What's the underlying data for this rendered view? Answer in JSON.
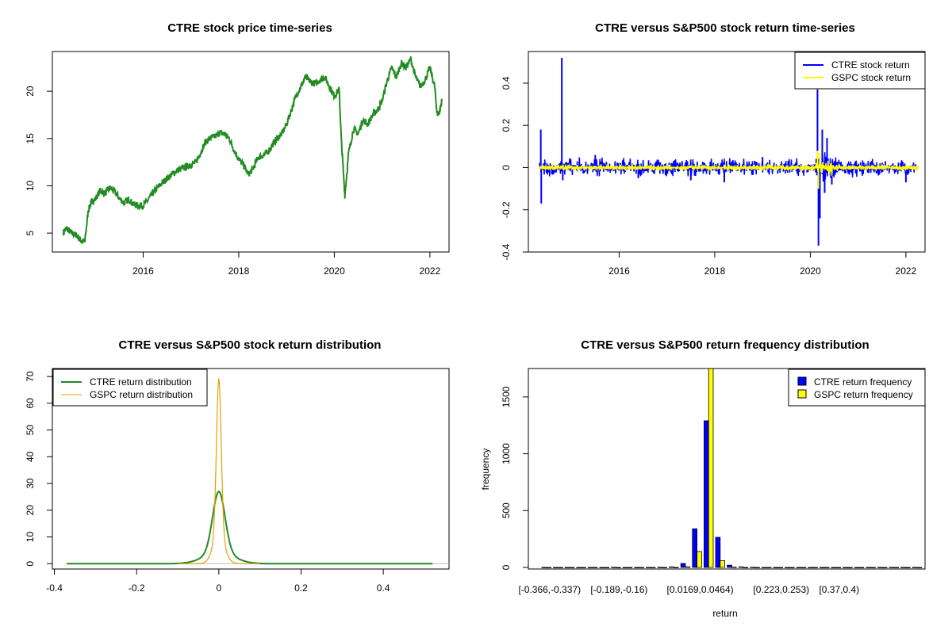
{
  "chart_data": [
    {
      "id": "price",
      "type": "line",
      "title": "CTRE stock price time-series",
      "xlabel": "",
      "ylabel": "",
      "xlim": [
        2014.1,
        2022.4
      ],
      "ylim": [
        3.0,
        24.2
      ],
      "x_ticks": [
        2016,
        2018,
        2020,
        2022
      ],
      "y_ticks": [
        5,
        10,
        15,
        20
      ],
      "series": [
        {
          "color": "#228B22",
          "x": [
            2014.33,
            2014.4,
            2014.5,
            2014.6,
            2014.7,
            2014.78,
            2014.85,
            2014.92,
            2015.0,
            2015.1,
            2015.2,
            2015.3,
            2015.4,
            2015.5,
            2015.6,
            2015.7,
            2015.8,
            2015.9,
            2016.0,
            2016.1,
            2016.2,
            2016.3,
            2016.4,
            2016.5,
            2016.6,
            2016.7,
            2016.8,
            2016.9,
            2017.0,
            2017.1,
            2017.2,
            2017.3,
            2017.4,
            2017.5,
            2017.6,
            2017.7,
            2017.8,
            2017.9,
            2018.0,
            2018.1,
            2018.2,
            2018.3,
            2018.4,
            2018.5,
            2018.6,
            2018.7,
            2018.8,
            2018.9,
            2019.0,
            2019.1,
            2019.2,
            2019.3,
            2019.4,
            2019.5,
            2019.6,
            2019.7,
            2019.8,
            2019.9,
            2020.0,
            2020.1,
            2020.15,
            2020.22,
            2020.3,
            2020.4,
            2020.5,
            2020.6,
            2020.7,
            2020.8,
            2020.9,
            2021.0,
            2021.1,
            2021.2,
            2021.3,
            2021.4,
            2021.5,
            2021.6,
            2021.7,
            2021.8,
            2021.9,
            2022.0,
            2022.1,
            2022.15,
            2022.2,
            2022.25
          ],
          "y": [
            5.1,
            5.5,
            5.0,
            4.8,
            4.2,
            4.1,
            7.4,
            8.3,
            8.6,
            9.5,
            9.2,
            9.8,
            9.4,
            8.7,
            8.2,
            8.6,
            8.0,
            7.9,
            7.9,
            8.5,
            9.2,
            9.8,
            10.3,
            10.8,
            11.2,
            11.6,
            11.8,
            12.0,
            12.2,
            12.5,
            13.5,
            14.6,
            15.0,
            15.2,
            15.6,
            15.5,
            15.0,
            13.8,
            12.8,
            12.2,
            11.2,
            11.8,
            13.0,
            13.2,
            13.5,
            14.3,
            15.0,
            15.5,
            16.5,
            18.0,
            19.5,
            20.5,
            21.5,
            21.0,
            20.8,
            21.2,
            21.5,
            20.5,
            19.5,
            20.2,
            14.5,
            9.0,
            13.5,
            16.0,
            15.5,
            17.0,
            16.5,
            17.5,
            18.0,
            19.0,
            21.0,
            22.5,
            21.5,
            23.0,
            22.5,
            23.4,
            21.5,
            20.5,
            21.2,
            22.5,
            20.5,
            17.6,
            17.8,
            19.0
          ]
        }
      ]
    },
    {
      "id": "returns",
      "type": "line",
      "title": "CTRE versus S&P500 stock return time-series",
      "xlabel": "",
      "ylabel": "",
      "xlim": [
        2014.1,
        2022.4
      ],
      "ylim": [
        -0.4,
        0.55
      ],
      "x_ticks": [
        2016,
        2018,
        2020,
        2022
      ],
      "y_ticks": [
        -0.4,
        -0.2,
        0.0,
        0.2,
        0.4
      ],
      "legend": {
        "position": "top-right",
        "entries": [
          {
            "label": "CTRE stock return",
            "color": "#0000FF"
          },
          {
            "label": "GSPC stock return",
            "color": "#FFFF00"
          }
        ]
      },
      "series": [
        {
          "color": "#0000FF",
          "spikes": [
            [
              2014.36,
              0.18
            ],
            [
              2014.37,
              -0.17
            ],
            [
              2014.8,
              0.52
            ],
            [
              2014.82,
              -0.06
            ],
            [
              2015.5,
              0.06
            ],
            [
              2016.4,
              -0.05
            ],
            [
              2017.5,
              -0.06
            ],
            [
              2018.2,
              -0.07
            ],
            [
              2019.0,
              0.05
            ],
            [
              2020.15,
              0.37
            ],
            [
              2020.17,
              -0.37
            ],
            [
              2020.2,
              -0.24
            ],
            [
              2020.25,
              0.18
            ],
            [
              2020.3,
              -0.12
            ],
            [
              2020.35,
              0.14
            ],
            [
              2020.45,
              -0.08
            ],
            [
              2022.0,
              -0.07
            ]
          ],
          "base_amplitude": 0.035
        },
        {
          "color": "#FFFF00",
          "spikes": [
            [
              2020.15,
              0.08
            ],
            [
              2020.17,
              -0.1
            ],
            [
              2020.2,
              0.07
            ]
          ],
          "base_amplitude": 0.012
        }
      ]
    },
    {
      "id": "density",
      "type": "line",
      "title": "CTRE versus S&P500 stock return distribution",
      "xlabel": "",
      "ylabel": "",
      "xlim": [
        -0.405,
        0.56
      ],
      "ylim": [
        -2,
        73
      ],
      "x_ticks": [
        -0.4,
        -0.2,
        0.0,
        0.2,
        0.4
      ],
      "y_ticks": [
        0,
        10,
        20,
        30,
        40,
        50,
        60,
        70
      ],
      "legend": {
        "position": "top-left",
        "entries": [
          {
            "label": "CTRE return distribution",
            "color": "#228B22"
          },
          {
            "label": "GSPC return distribution",
            "color": "#E69F00"
          }
        ]
      },
      "series": [
        {
          "color": "#228B22",
          "peak": 27,
          "center": 0.0,
          "sd": 0.015,
          "xmin": -0.37,
          "xmax": 0.52
        },
        {
          "color": "#E69F00",
          "peak": 69,
          "center": 0.0,
          "sd": 0.0058,
          "xmin": -0.1,
          "xmax": 0.1
        }
      ]
    },
    {
      "id": "freq",
      "type": "bar",
      "title": "CTRE versus S&P500 return frequency distribution",
      "xlabel": "return",
      "ylabel": "frequency",
      "ylim": [
        0,
        1750
      ],
      "y_ticks": [
        0,
        500,
        1000,
        1500
      ],
      "category_labels": [
        "[-0.366,-0.337)",
        "[-0.189,-0.16)",
        "[0.0169,0.0464)",
        "[0.223,0.253)",
        "[0.37,0.4)"
      ],
      "label_positions": [
        0,
        6,
        13,
        20,
        25
      ],
      "legend": {
        "position": "top-right",
        "entries": [
          {
            "label": "CTRE return frequency",
            "color": "#0000FF"
          },
          {
            "label": "GSPC return frequency",
            "color": "#FFFF00"
          }
        ]
      },
      "ctre": [
        1,
        0,
        0,
        0,
        0,
        0,
        2,
        0,
        0,
        1,
        2,
        5,
        35,
        340,
        1290,
        265,
        20,
        5,
        2,
        0,
        0,
        0,
        0,
        0,
        0,
        0,
        0,
        0,
        1,
        1,
        1,
        1,
        1
      ],
      "gspc": [
        0,
        0,
        0,
        0,
        0,
        0,
        0,
        0,
        0,
        0,
        0,
        0,
        5,
        140,
        1750,
        60,
        3,
        0,
        0,
        0,
        0,
        0,
        0,
        0,
        0,
        0,
        0,
        0,
        0,
        0,
        0,
        0,
        0
      ]
    }
  ]
}
